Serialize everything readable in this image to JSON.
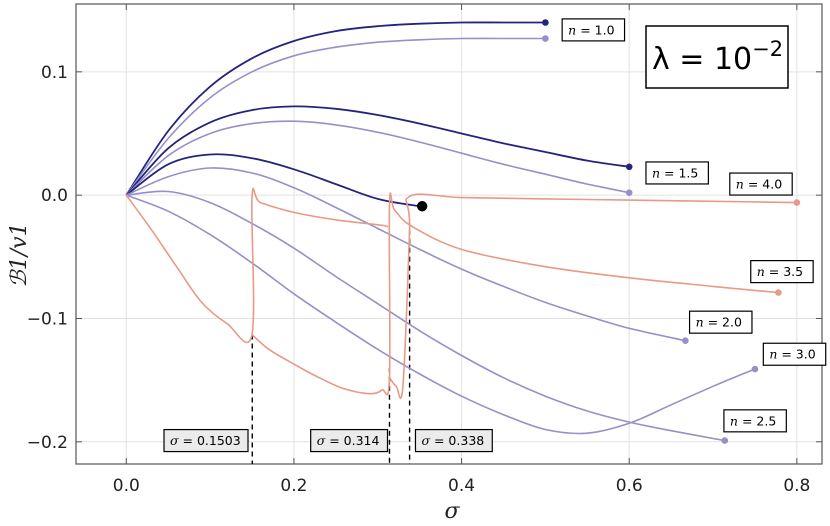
{
  "chart_data": {
    "type": "line",
    "xlabel": "σ",
    "ylabel": "ℬ1/v1",
    "xlim": [
      -0.06,
      0.83
    ],
    "ylim": [
      -0.218,
      0.155
    ],
    "grid": true,
    "xticks": [
      0.0,
      0.2,
      0.4,
      0.6,
      0.8
    ],
    "xtick_labels": [
      "0.0",
      "0.2",
      "0.4",
      "0.6",
      "0.8"
    ],
    "yticks": [
      0.1,
      0.0,
      -0.1,
      -0.2
    ],
    "ytick_labels": [
      "0.1",
      "0.0",
      "−0.1",
      "−0.2"
    ],
    "annotation": {
      "lambda_base": "λ = 10",
      "lambda_exp": "−2"
    },
    "colors": {
      "dark": "#24247a",
      "light": "#9590c8",
      "salmon": "#e89a86",
      "frame": "#555555"
    },
    "series": [
      {
        "label": "n = 1.0",
        "color": "dark",
        "x": [
          0,
          0.05,
          0.1,
          0.15,
          0.2,
          0.25,
          0.3,
          0.35,
          0.4,
          0.45,
          0.5
        ],
        "y": [
          0,
          0.052,
          0.088,
          0.111,
          0.125,
          0.133,
          0.137,
          0.139,
          0.14,
          0.14,
          0.14
        ]
      },
      {
        "label": "",
        "color": "light",
        "x": [
          0,
          0.05,
          0.1,
          0.15,
          0.2,
          0.25,
          0.3,
          0.35,
          0.4,
          0.45,
          0.5
        ],
        "y": [
          0,
          0.046,
          0.079,
          0.1,
          0.113,
          0.12,
          0.124,
          0.126,
          0.127,
          0.127,
          0.127
        ]
      },
      {
        "label": "n = 1.5",
        "color": "dark",
        "x": [
          0,
          0.05,
          0.1,
          0.15,
          0.2,
          0.25,
          0.3,
          0.35,
          0.4,
          0.45,
          0.5,
          0.55,
          0.6
        ],
        "y": [
          0,
          0.038,
          0.059,
          0.069,
          0.072,
          0.07,
          0.065,
          0.058,
          0.05,
          0.042,
          0.035,
          0.028,
          0.023
        ]
      },
      {
        "label": "",
        "color": "light",
        "x": [
          0,
          0.05,
          0.1,
          0.15,
          0.2,
          0.25,
          0.3,
          0.35,
          0.4,
          0.45,
          0.5,
          0.55,
          0.6
        ],
        "y": [
          0,
          0.032,
          0.05,
          0.058,
          0.06,
          0.057,
          0.051,
          0.043,
          0.034,
          0.025,
          0.017,
          0.009,
          0.002
        ]
      },
      {
        "label": "",
        "color": "dark",
        "x": [
          0,
          0.05,
          0.1,
          0.15,
          0.2,
          0.25,
          0.3,
          0.35
        ],
        "y": [
          0,
          0.025,
          0.033,
          0.03,
          0.021,
          0.009,
          -0.003,
          -0.009
        ]
      },
      {
        "label": "",
        "color": "light",
        "x": [
          0,
          0.05,
          0.1,
          0.15,
          0.2,
          0.25,
          0.3,
          0.35,
          0.4,
          0.45,
          0.5,
          0.55,
          0.6,
          0.667
        ],
        "y": [
          0,
          0.015,
          0.022,
          0.018,
          0.006,
          -0.01,
          -0.027,
          -0.044,
          -0.06,
          -0.074,
          -0.087,
          -0.098,
          -0.108,
          -0.118
        ]
      },
      {
        "label": "",
        "color": "light",
        "x": [
          0,
          0.05,
          0.1,
          0.15,
          0.2,
          0.25,
          0.3,
          0.35,
          0.4,
          0.45,
          0.5,
          0.55,
          0.6,
          0.65,
          0.714
        ],
        "y": [
          0,
          0.003,
          -0.006,
          -0.023,
          -0.043,
          -0.066,
          -0.088,
          -0.11,
          -0.13,
          -0.148,
          -0.163,
          -0.175,
          -0.184,
          -0.191,
          -0.199
        ]
      },
      {
        "label": "",
        "color": "light",
        "x": [
          0,
          0.05,
          0.1,
          0.15,
          0.2,
          0.25,
          0.3,
          0.35,
          0.4,
          0.45,
          0.5,
          0.55,
          0.6,
          0.65,
          0.7,
          0.75
        ],
        "y": [
          0,
          -0.013,
          -0.032,
          -0.055,
          -0.08,
          -0.103,
          -0.125,
          -0.145,
          -0.163,
          -0.178,
          -0.19,
          -0.193,
          -0.185,
          -0.17,
          -0.155,
          -0.141
        ]
      },
      {
        "label": "",
        "color": "salmon",
        "x": [
          0,
          0.03,
          0.06,
          0.09,
          0.12,
          0.15,
          0.15,
          0.16,
          0.2,
          0.25,
          0.3,
          0.31,
          0.312
        ],
        "y": [
          0,
          -0.028,
          -0.058,
          -0.087,
          -0.104,
          -0.113,
          -0.002,
          -0.006,
          -0.014,
          -0.02,
          -0.024,
          -0.025,
          -0.026
        ]
      },
      {
        "label": "",
        "color": "salmon",
        "x": [
          0.15,
          0.17,
          0.2,
          0.23,
          0.26,
          0.29,
          0.305,
          0.314,
          0.314,
          0.32,
          0.34,
          0.4,
          0.5,
          0.6,
          0.7,
          0.778
        ],
        "y": [
          -0.113,
          -0.125,
          -0.137,
          -0.148,
          -0.157,
          -0.161,
          -0.158,
          -0.148,
          -0.008,
          -0.012,
          -0.025,
          -0.044,
          -0.058,
          -0.067,
          -0.074,
          -0.079
        ]
      },
      {
        "label": "",
        "color": "salmon",
        "x": [
          0.314,
          0.322,
          0.33,
          0.338,
          0.338,
          0.4,
          0.5,
          0.6,
          0.7,
          0.8
        ],
        "y": [
          -0.148,
          -0.155,
          -0.155,
          -0.028,
          -0.001,
          -0.002,
          -0.003,
          -0.004,
          -0.005,
          -0.006
        ]
      }
    ],
    "endpoints": [
      {
        "x": 0.5,
        "y": 0.14,
        "color": "dark"
      },
      {
        "x": 0.5,
        "y": 0.127,
        "color": "light"
      },
      {
        "x": 0.6,
        "y": 0.023,
        "color": "dark"
      },
      {
        "x": 0.6,
        "y": 0.002,
        "color": "light"
      },
      {
        "x": 0.667,
        "y": -0.118,
        "color": "light"
      },
      {
        "x": 0.714,
        "y": -0.199,
        "color": "light"
      },
      {
        "x": 0.75,
        "y": -0.141,
        "color": "light"
      },
      {
        "x": 0.778,
        "y": -0.079,
        "color": "salmon"
      },
      {
        "x": 0.8,
        "y": -0.006,
        "color": "salmon"
      }
    ],
    "black_point": {
      "x": 0.353,
      "y": -0.009
    },
    "dashed_lines": [
      {
        "x": 0.1503,
        "y_top": -0.113
      },
      {
        "x": 0.314,
        "y_top": -0.14
      },
      {
        "x": 0.338,
        "y_top": -0.028
      }
    ],
    "curve_labels": [
      {
        "n": "1.0",
        "x": 0.52,
        "y": 0.134
      },
      {
        "n": "1.5",
        "x": 0.62,
        "y": 0.018
      },
      {
        "n": "4.0",
        "x": 0.72,
        "y": 0.009
      },
      {
        "n": "3.5",
        "x": 0.745,
        "y": -0.062
      },
      {
        "n": "2.0",
        "x": 0.672,
        "y": -0.103
      },
      {
        "n": "3.0",
        "x": 0.76,
        "y": -0.129
      },
      {
        "n": "2.5",
        "x": 0.713,
        "y": -0.183
      }
    ],
    "sigma_labels": [
      {
        "value": "0.1503",
        "x": 0.045,
        "y": -0.199
      },
      {
        "value": "0.314",
        "x": 0.22,
        "y": -0.199
      },
      {
        "value": "0.338",
        "x": 0.345,
        "y": -0.199
      }
    ]
  }
}
